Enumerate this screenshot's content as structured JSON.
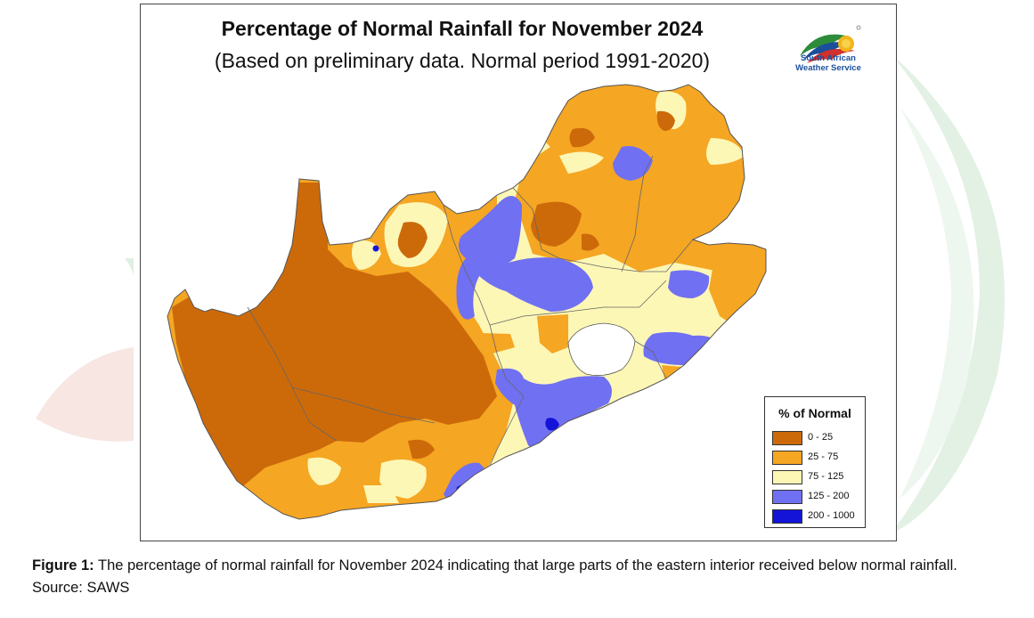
{
  "map": {
    "title": "Percentage of Normal Rainfall for November 2024",
    "subtitle": "(Based on preliminary data. Normal period 1991-2020)",
    "logo_text_line1": "South African",
    "logo_text_line2": "Weather Service",
    "colors": {
      "very_low": "#cc6a0a",
      "low": "#f5a623",
      "normal": "#fdf7b6",
      "high": "#7070f2",
      "very_high": "#1414d8"
    }
  },
  "legend": {
    "title": "% of Normal",
    "items": [
      {
        "label": "0 - 25",
        "color": "#cc6a0a"
      },
      {
        "label": "25 - 75",
        "color": "#f5a623"
      },
      {
        "label": "75 - 125",
        "color": "#fdf7b6"
      },
      {
        "label": "125 - 200",
        "color": "#7070f2"
      },
      {
        "label": "200 - 1000",
        "color": "#1414d8"
      }
    ]
  },
  "caption": {
    "label": "Figure 1:",
    "text": "The percentage of normal rainfall for November 2024 indicating that large parts of the eastern interior received below normal rainfall. Source: SAWS"
  }
}
